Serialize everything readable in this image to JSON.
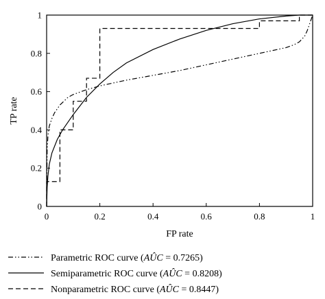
{
  "chart_data": {
    "type": "line",
    "title": "",
    "xlabel": "FP rate",
    "ylabel": "TP rate",
    "xlim": [
      0,
      1
    ],
    "ylim": [
      0,
      1
    ],
    "xticks": [
      "0",
      "0.2",
      "0.4",
      "0.6",
      "0.8",
      "1"
    ],
    "yticks": [
      "0",
      "0.2",
      "0.4",
      "0.6",
      "0.8",
      "1"
    ],
    "grid": false,
    "legend_placement": "bottom",
    "series": [
      {
        "name": "Parametric ROC curve (AÛC = 0.7265)",
        "legend_prefix": "Parametric ROC curve (",
        "legend_suffix": " = 0.7265)",
        "auc": 0.7265,
        "style": "dash-dot-dot",
        "x": [
          0,
          0.002,
          0.005,
          0.01,
          0.02,
          0.03,
          0.05,
          0.08,
          0.1,
          0.15,
          0.2,
          0.3,
          0.4,
          0.5,
          0.6,
          0.7,
          0.8,
          0.85,
          0.9,
          0.93,
          0.95,
          0.97,
          0.98,
          0.99,
          1
        ],
        "y": [
          0,
          0.3,
          0.37,
          0.42,
          0.46,
          0.49,
          0.53,
          0.57,
          0.585,
          0.61,
          0.63,
          0.66,
          0.685,
          0.71,
          0.74,
          0.77,
          0.8,
          0.815,
          0.83,
          0.845,
          0.86,
          0.89,
          0.92,
          0.96,
          1
        ]
      },
      {
        "name": "Semiparametric ROC curve (AÛC = 0.8208)",
        "legend_prefix": "Semiparametric ROC curve (",
        "legend_suffix": " = 0.8208)",
        "auc": 0.8208,
        "style": "solid",
        "x": [
          0,
          0.002,
          0.005,
          0.01,
          0.02,
          0.04,
          0.06,
          0.1,
          0.15,
          0.2,
          0.25,
          0.3,
          0.4,
          0.5,
          0.6,
          0.7,
          0.8,
          0.9,
          0.95,
          1
        ],
        "y": [
          0,
          0.1,
          0.16,
          0.22,
          0.28,
          0.35,
          0.4,
          0.48,
          0.57,
          0.64,
          0.7,
          0.75,
          0.82,
          0.875,
          0.92,
          0.955,
          0.98,
          0.995,
          1,
          1
        ]
      },
      {
        "name": "Nonparametric ROC curve (AÛC = 0.8447)",
        "legend_prefix": "Nonparametric ROC curve (",
        "legend_suffix": " = 0.8447)",
        "auc": 0.8447,
        "style": "dashed",
        "x": [
          0,
          0,
          0.05,
          0.05,
          0.1,
          0.1,
          0.15,
          0.15,
          0.2,
          0.2,
          0.8,
          0.8,
          0.95,
          0.95,
          1
        ],
        "y": [
          0,
          0.13,
          0.13,
          0.4,
          0.4,
          0.55,
          0.55,
          0.67,
          0.67,
          0.93,
          0.93,
          0.97,
          0.97,
          1,
          1
        ]
      }
    ]
  }
}
